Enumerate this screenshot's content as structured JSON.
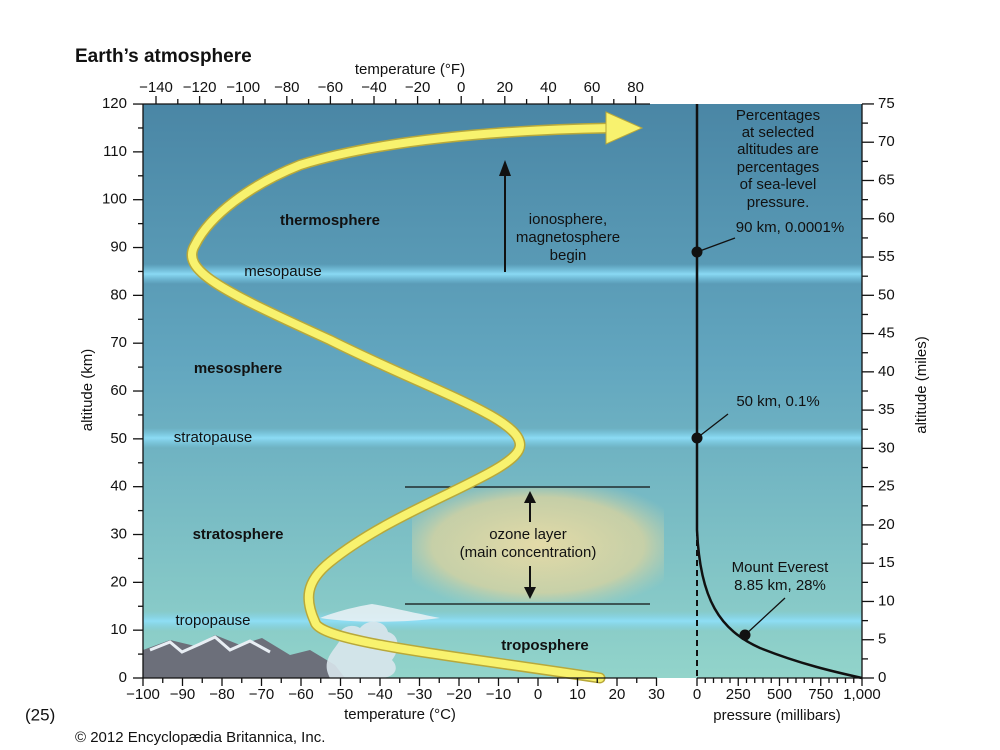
{
  "title": "Earth’s atmosphere",
  "top_axis": {
    "label": "temperature (°F)",
    "ticks": [
      "−140",
      "−120",
      "−100",
      "−80",
      "−60",
      "−40",
      "−20",
      "0",
      "20",
      "40",
      "60",
      "80"
    ]
  },
  "bottom_axis": {
    "label": "temperature (°C)",
    "ticks": [
      "−100",
      "−90",
      "−80",
      "−70",
      "−60",
      "−50",
      "−40",
      "−30",
      "−20",
      "−10",
      "0",
      "10",
      "20",
      "30"
    ]
  },
  "pressure_axis": {
    "label": "pressure (millibars)",
    "ticks": [
      "0",
      "250",
      "500",
      "750",
      "1,000"
    ]
  },
  "left_axis": {
    "label": "altitude (km)",
    "ticks": [
      "0",
      "10",
      "20",
      "30",
      "40",
      "50",
      "60",
      "70",
      "80",
      "90",
      "100",
      "110",
      "120"
    ]
  },
  "right_axis": {
    "label": "altitude (miles)",
    "ticks": [
      "0",
      "5",
      "10",
      "15",
      "20",
      "25",
      "30",
      "35",
      "40",
      "45",
      "50",
      "55",
      "60",
      "65",
      "70",
      "75"
    ]
  },
  "layers": {
    "thermosphere": "thermosphere",
    "mesopause": "mesopause",
    "mesosphere": "mesosphere",
    "stratopause": "stratopause",
    "stratosphere": "stratosphere",
    "tropopause": "tropopause",
    "troposphere": "troposphere"
  },
  "annotations": {
    "ionosphere": [
      "ionosphere,",
      "magnetosphere",
      "begin"
    ],
    "ozone": [
      "ozone layer",
      "(main concentration)"
    ],
    "percentages_note": [
      "Percentages",
      "at selected",
      "altitudes are",
      "percentages",
      "of sea-level",
      "pressure."
    ],
    "point_90km": "90 km, 0.0001%",
    "point_50km": "50 km, 0.1%",
    "everest": [
      "Mount Everest",
      "8.85 km, 28%"
    ]
  },
  "figure_number": "(25)",
  "credit": "© 2012 Encyclopædia Britannica, Inc."
}
